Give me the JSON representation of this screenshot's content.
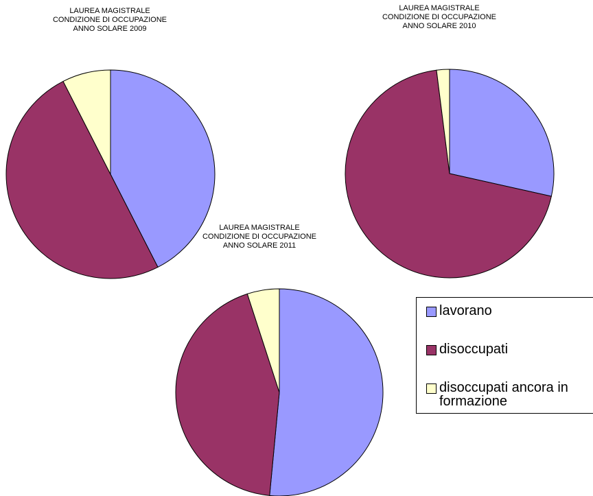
{
  "legend": {
    "items": [
      "lavorano",
      "disoccupati",
      "disoccupati ancora in formazione"
    ],
    "colors": [
      "#9999ff",
      "#993366",
      "#ffffcc"
    ]
  },
  "chart_data": [
    {
      "type": "pie",
      "title_lines": [
        "LAUREA MAGISTRALE",
        "CONDIZIONE DI OCCUPAZIONE",
        "ANNO SOLARE 2009"
      ],
      "categories": [
        "lavorano",
        "disoccupati",
        "disoccupati ancora in formazione"
      ],
      "values": [
        42.5,
        50,
        7.5
      ]
    },
    {
      "type": "pie",
      "title_lines": [
        "LAUREA MAGISTRALE",
        "CONDIZIONE DI OCCUPAZIONE",
        "ANNO SOLARE 2010"
      ],
      "categories": [
        "lavorano",
        "disoccupati",
        "disoccupati ancora in formazione"
      ],
      "values": [
        28.5,
        69.5,
        2
      ]
    },
    {
      "type": "pie",
      "title_lines": [
        "LAUREA MAGISTRALE",
        "CONDIZIONE DI OCCUPAZIONE",
        "ANNO SOLARE 2011"
      ],
      "categories": [
        "lavorano",
        "disoccupati",
        "disoccupati ancora in formazione"
      ],
      "values": [
        51.5,
        43.5,
        5
      ]
    }
  ]
}
